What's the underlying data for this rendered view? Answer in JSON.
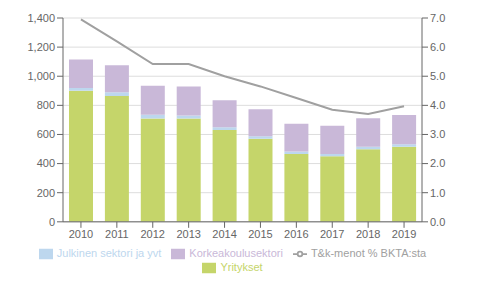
{
  "chart_data": {
    "type": "bar",
    "stacked": true,
    "categories": [
      "2010",
      "2011",
      "2012",
      "2013",
      "2014",
      "2015",
      "2016",
      "2017",
      "2018",
      "2019"
    ],
    "series": [
      {
        "name": "Yritykset",
        "color": "#c5d56a",
        "values": [
          900,
          865,
          710,
          710,
          630,
          570,
          465,
          450,
          498,
          515
        ]
      },
      {
        "name": "Julkinen sektori ja yvt",
        "color": "#bdd7ee",
        "values": [
          20,
          25,
          25,
          20,
          20,
          18,
          18,
          15,
          18,
          18
        ]
      },
      {
        "name": "Korkeakoulusektori",
        "color": "#c9b8d8",
        "values": [
          195,
          185,
          200,
          200,
          185,
          185,
          190,
          195,
          195,
          200
        ]
      },
      {
        "name": "T&k-menot % BKTA:sta",
        "type": "line",
        "axis": "y2",
        "color": "#a0a0a0",
        "values": [
          6.95,
          6.2,
          5.42,
          5.42,
          5.0,
          4.65,
          4.25,
          3.85,
          3.7,
          3.97
        ]
      }
    ],
    "ylim": [
      0,
      1400
    ],
    "yticks": [
      0,
      200,
      400,
      600,
      800,
      {
        "value": 1000,
        "label": "1,000"
      },
      {
        "value": 1200,
        "label": "1,200"
      },
      {
        "value": 1400,
        "label": "1,400"
      }
    ],
    "y2lim": [
      0,
      7.0
    ],
    "y2ticks": [
      {
        "value": 0,
        "label": "0.0"
      },
      {
        "value": 1,
        "label": "1.0"
      },
      {
        "value": 2,
        "label": "2.0"
      },
      {
        "value": 3,
        "label": "3.0"
      },
      {
        "value": 4,
        "label": "4.0"
      },
      {
        "value": 5,
        "label": "5.0"
      },
      {
        "value": 6,
        "label": "6.0"
      },
      {
        "value": 7,
        "label": "7.0"
      }
    ],
    "grid": true,
    "legend": "bottom"
  }
}
